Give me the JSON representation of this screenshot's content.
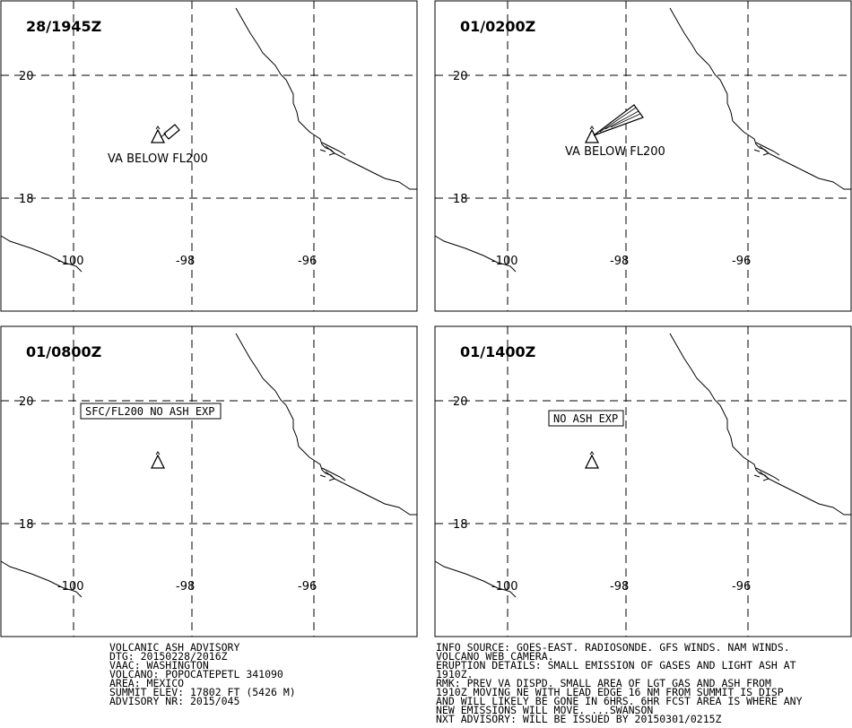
{
  "panels": [
    {
      "time": "28/1945Z",
      "lat_labels": [
        "20",
        "18"
      ],
      "lon_labels": [
        "-100",
        "-98",
        "-96"
      ],
      "plume": "box",
      "annotation": "VA BELOW FL200",
      "boxed_text": ""
    },
    {
      "time": "01/0200Z",
      "lat_labels": [
        "20",
        "18"
      ],
      "lon_labels": [
        "-100",
        "-98",
        "-96"
      ],
      "plume": "wedge",
      "annotation": "VA BELOW FL200",
      "boxed_text": ""
    },
    {
      "time": "01/0800Z",
      "lat_labels": [
        "20",
        "18"
      ],
      "lon_labels": [
        "-100",
        "-98",
        "-96"
      ],
      "plume": "none",
      "annotation": "",
      "boxed_text": "SFC/FL200 NO ASH EXP"
    },
    {
      "time": "01/1400Z",
      "lat_labels": [
        "20",
        "18"
      ],
      "lon_labels": [
        "-100",
        "-98",
        "-96"
      ],
      "plume": "none",
      "annotation": "",
      "boxed_text": "NO ASH EXP"
    }
  ],
  "advisory_left": [
    "VOLCANIC ASH ADVISORY",
    "DTG: 20150228/2016Z",
    "VAAC: WASHINGTON",
    "VOLCANO: POPOCATEPETL 341090",
    "AREA: MEXICO",
    "SUMMIT ELEV: 17802 FT (5426 M)",
    "ADVISORY NR: 2015/045"
  ],
  "advisory_right": [
    "INFO SOURCE: GOES-EAST. RADIOSONDE. GFS WINDS. NAM WINDS.",
    "VOLCANO WEB CAMERA.",
    "ERUPTION DETAILS: SMALL EMISSION OF GASES AND LIGHT ASH AT",
    "1910Z.",
    "RMK: PREV VA DISPD. SMALL AREA OF LGT GAS AND ASH FROM",
    "1910Z MOVING NE WITH LEAD EDGE 16 NM FROM SUMMIT IS DISP",
    "AND WILL LIKELY BE GONE IN 6HRS. 6HR FCST AREA IS WHERE ANY",
    "NEW EMISSIONS WILL MOVE. ...SWANSON",
    "NXT ADVISORY: WILL BE ISSUED BY 20150301/0215Z"
  ]
}
